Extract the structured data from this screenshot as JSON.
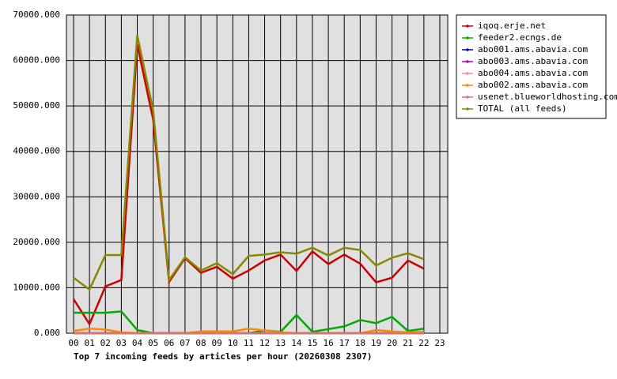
{
  "chart_data": {
    "type": "line",
    "title": "Top 7 incoming feeds by articles per hour (20260308 2307)",
    "categories": [
      "00",
      "01",
      "02",
      "03",
      "04",
      "05",
      "06",
      "07",
      "08",
      "09",
      "10",
      "11",
      "12",
      "13",
      "14",
      "15",
      "16",
      "17",
      "18",
      "19",
      "20",
      "21",
      "22",
      "23"
    ],
    "ylim": [
      0,
      70000
    ],
    "yticks": [
      {
        "value": 0,
        "label": "0.000"
      },
      {
        "value": 10000,
        "label": "10000.000"
      },
      {
        "value": 20000,
        "label": "20000.000"
      },
      {
        "value": 30000,
        "label": "30000.000"
      },
      {
        "value": 40000,
        "label": "40000.000"
      },
      {
        "value": 50000,
        "label": "50000.000"
      },
      {
        "value": 60000,
        "label": "60000.000"
      },
      {
        "value": 70000,
        "label": "70000.000"
      }
    ],
    "grid": true,
    "legend": "right",
    "series": [
      {
        "name": "iqoq.erje.net",
        "color": "#cc0000",
        "values": [
          7500,
          2000,
          10300,
          11700,
          63500,
          47000,
          11300,
          16500,
          13300,
          14600,
          12000,
          13800,
          16000,
          17300,
          13700,
          18000,
          15200,
          17300,
          15300,
          11200,
          12200,
          16000,
          14200,
          null
        ]
      },
      {
        "name": "feeder2.ecngs.de",
        "color": "#00aa00",
        "values": [
          4500,
          4500,
          4500,
          4800,
          700,
          0,
          0,
          0,
          0,
          0,
          0,
          0,
          600,
          300,
          4000,
          300,
          900,
          1500,
          2900,
          2200,
          3600,
          500,
          1000,
          null
        ]
      },
      {
        "name": "abo001.ams.abavia.com",
        "color": "#0000aa",
        "values": [
          0,
          0,
          0,
          0,
          0,
          0,
          0,
          0,
          0,
          0,
          0,
          0,
          0,
          0,
          0,
          0,
          0,
          0,
          0,
          0,
          0,
          0,
          0,
          null
        ]
      },
      {
        "name": "abo003.ams.abavia.com",
        "color": "#aa00aa",
        "values": [
          0,
          0,
          0,
          0,
          0,
          0,
          0,
          0,
          0,
          0,
          0,
          0,
          0,
          0,
          0,
          0,
          0,
          0,
          0,
          0,
          0,
          0,
          0,
          null
        ]
      },
      {
        "name": "abo004.ams.abavia.com",
        "color": "#ff8888",
        "values": [
          0,
          0,
          0,
          0,
          0,
          0,
          0,
          0,
          0,
          0,
          0,
          0,
          0,
          0,
          0,
          0,
          0,
          0,
          0,
          0,
          0,
          0,
          0,
          null
        ]
      },
      {
        "name": "abo002.ams.abavia.com",
        "color": "#ff8800",
        "values": [
          500,
          1000,
          800,
          200,
          0,
          0,
          0,
          0,
          400,
          400,
          400,
          1000,
          600,
          200,
          0,
          0,
          0,
          0,
          0,
          700,
          400,
          200,
          300,
          null
        ]
      },
      {
        "name": "usenet.blueworldhosting.com",
        "color": "#cc7777",
        "values": [
          0,
          0,
          0,
          0,
          0,
          0,
          0,
          0,
          0,
          0,
          0,
          0,
          0,
          0,
          0,
          0,
          0,
          0,
          0,
          0,
          0,
          0,
          0,
          null
        ]
      },
      {
        "name": "TOTAL (all feeds)",
        "color": "#888800",
        "values": [
          12200,
          9600,
          17200,
          17200,
          65500,
          49000,
          11700,
          16700,
          13800,
          15400,
          13000,
          17000,
          17300,
          17800,
          17500,
          18800,
          17100,
          18800,
          18300,
          14900,
          16600,
          17600,
          16300,
          null
        ]
      }
    ]
  }
}
